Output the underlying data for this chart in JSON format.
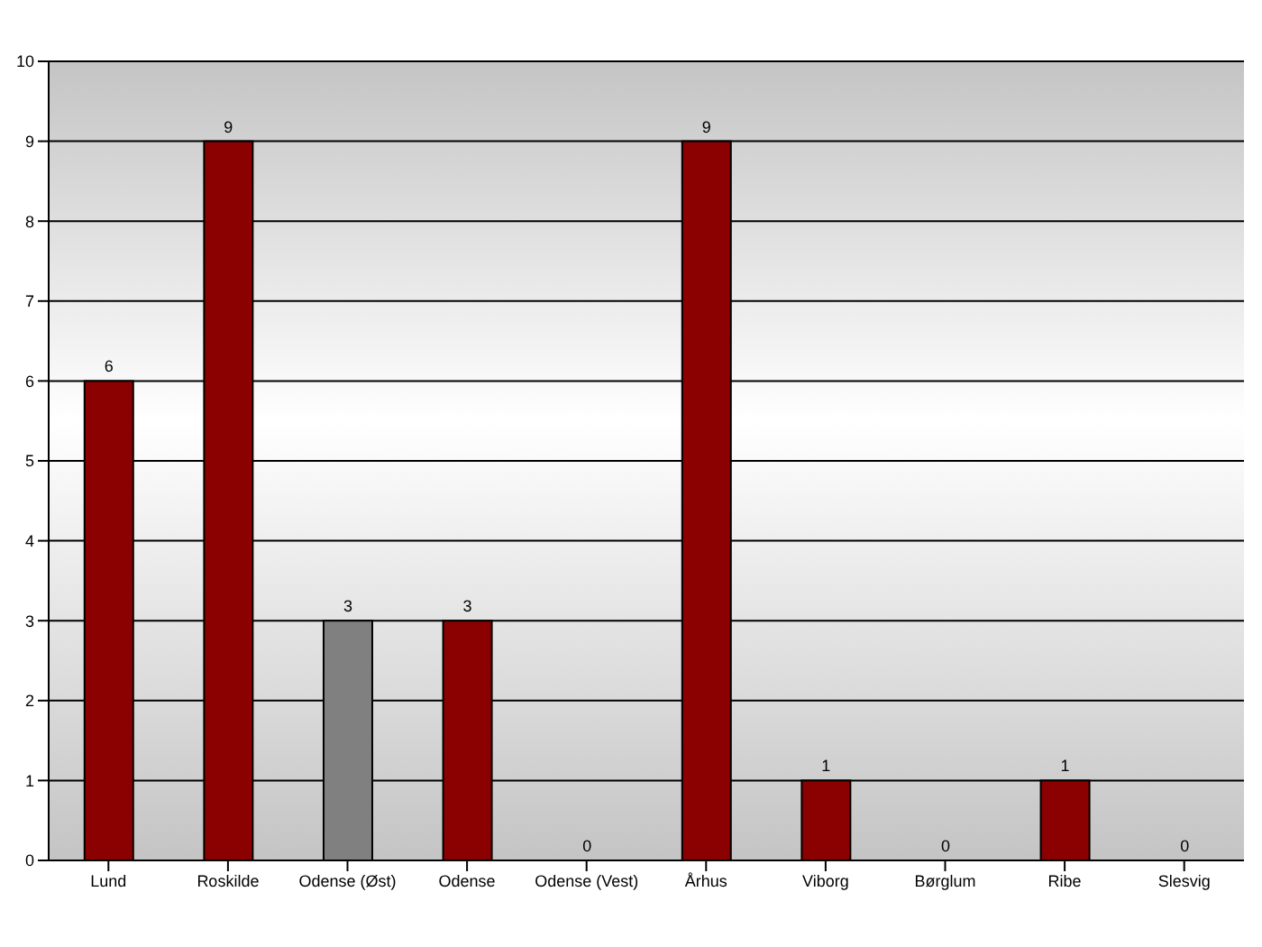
{
  "chart_data": {
    "type": "bar",
    "categories": [
      "Lund",
      "Roskilde",
      "Odense (Øst)",
      "Odense",
      "Odense (Vest)",
      "Århus",
      "Viborg",
      "Børglum",
      "Ribe",
      "Slesvig"
    ],
    "values": [
      6,
      9,
      3,
      3,
      0,
      9,
      1,
      0,
      1,
      0
    ],
    "colors": [
      "#8b0000",
      "#8b0000",
      "#808080",
      "#8b0000",
      "#8b0000",
      "#8b0000",
      "#8b0000",
      "#8b0000",
      "#8b0000",
      "#8b0000"
    ],
    "ylim": [
      0,
      10
    ],
    "yticks": [
      0,
      1,
      2,
      3,
      4,
      5,
      6,
      7,
      8,
      9,
      10
    ],
    "grid": "y",
    "data_labels": true
  }
}
